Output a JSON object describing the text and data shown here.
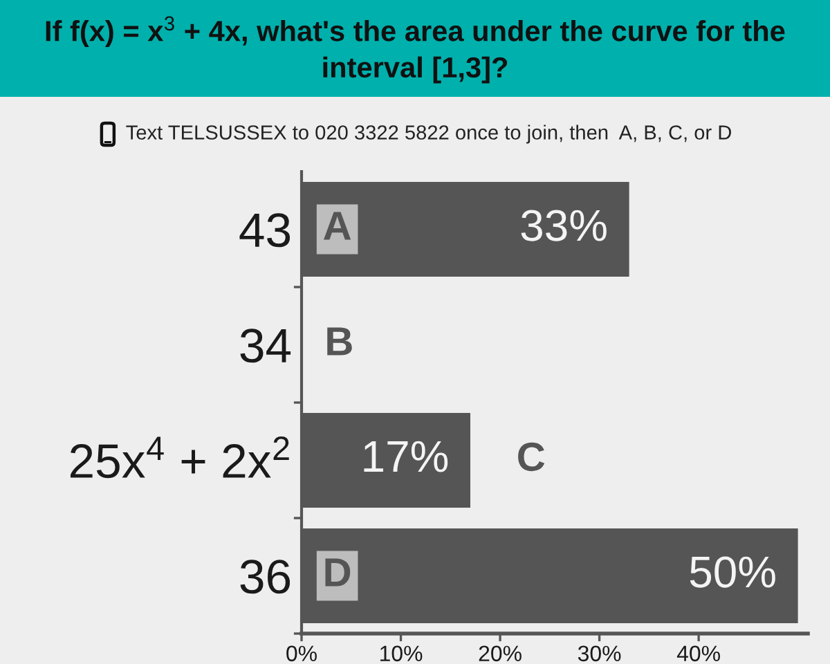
{
  "chart_data": {
    "type": "bar",
    "orientation": "horizontal",
    "title": "If f(x) = x$^{3}$ + 4x, what's the area under the curve for the interval [1,3]?",
    "subtitle": "Text TELSUSSEX to 020 3322 5822 once to join, then  A, B, C, or D",
    "categories": [
      "43",
      "34",
      "25x$^{4}$ + 2x$^{2}$",
      "36"
    ],
    "values": [
      33,
      0,
      17,
      50
    ],
    "value_labels": [
      "33%",
      null,
      "17%",
      "50%"
    ],
    "color": "#555555",
    "xlim": [
      0,
      51
    ],
    "xticks": [
      {
        "value": 0,
        "label": "0%"
      },
      {
        "value": 10,
        "label": "10%"
      },
      {
        "value": 20,
        "label": "20%"
      },
      {
        "value": 30,
        "label": "30%"
      },
      {
        "value": 40,
        "label": "40%"
      }
    ],
    "annotations": [
      "A",
      "B",
      "C",
      "D"
    ]
  }
}
